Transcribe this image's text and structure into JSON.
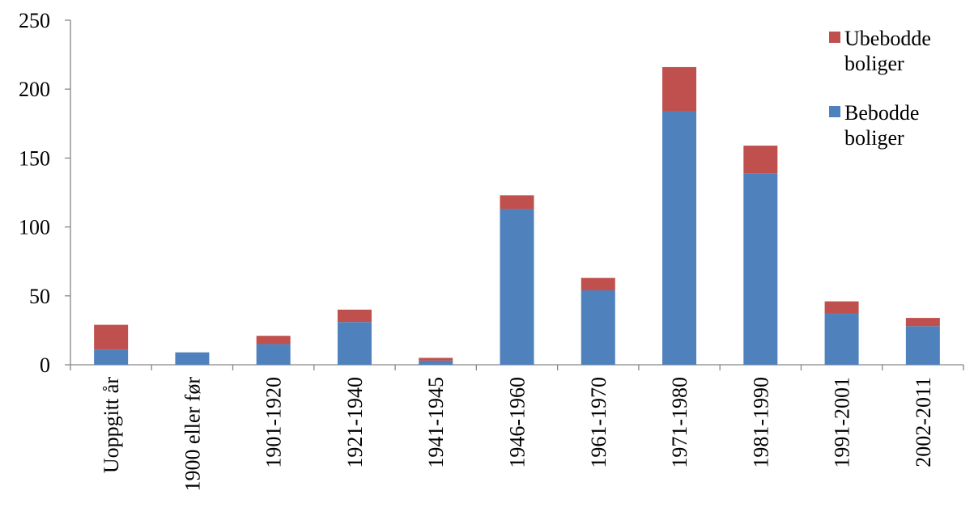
{
  "chart_data": {
    "type": "bar",
    "stacked": true,
    "categories": [
      "Uoppgitt år",
      "1900 eller før",
      "1901-1920",
      "1921-1940",
      "1941-1945",
      "1946-1960",
      "1961-1970",
      "1971-1980",
      "1981-1990",
      "1991-2001",
      "2002-2011"
    ],
    "series": [
      {
        "name": "Bebodde boliger",
        "color": "#4f81bd",
        "values": [
          11,
          9,
          15,
          31,
          3,
          113,
          54,
          184,
          139,
          37,
          28
        ]
      },
      {
        "name": "Ubebodde boliger",
        "color": "#c0504d",
        "values": [
          18,
          0,
          6,
          9,
          2,
          10,
          9,
          32,
          20,
          9,
          6
        ]
      }
    ],
    "ylim": [
      0,
      250
    ],
    "yticks": [
      "0",
      "50",
      "100",
      "150",
      "200",
      "250"
    ],
    "grid": false,
    "legend": {
      "position": "top-right",
      "entries": [
        {
          "series": "Ubebodde boliger",
          "lines": [
            "Ubebodde",
            "boliger"
          ]
        },
        {
          "series": "Bebodde boliger",
          "lines": [
            "Bebodde",
            "boliger"
          ]
        }
      ]
    }
  }
}
